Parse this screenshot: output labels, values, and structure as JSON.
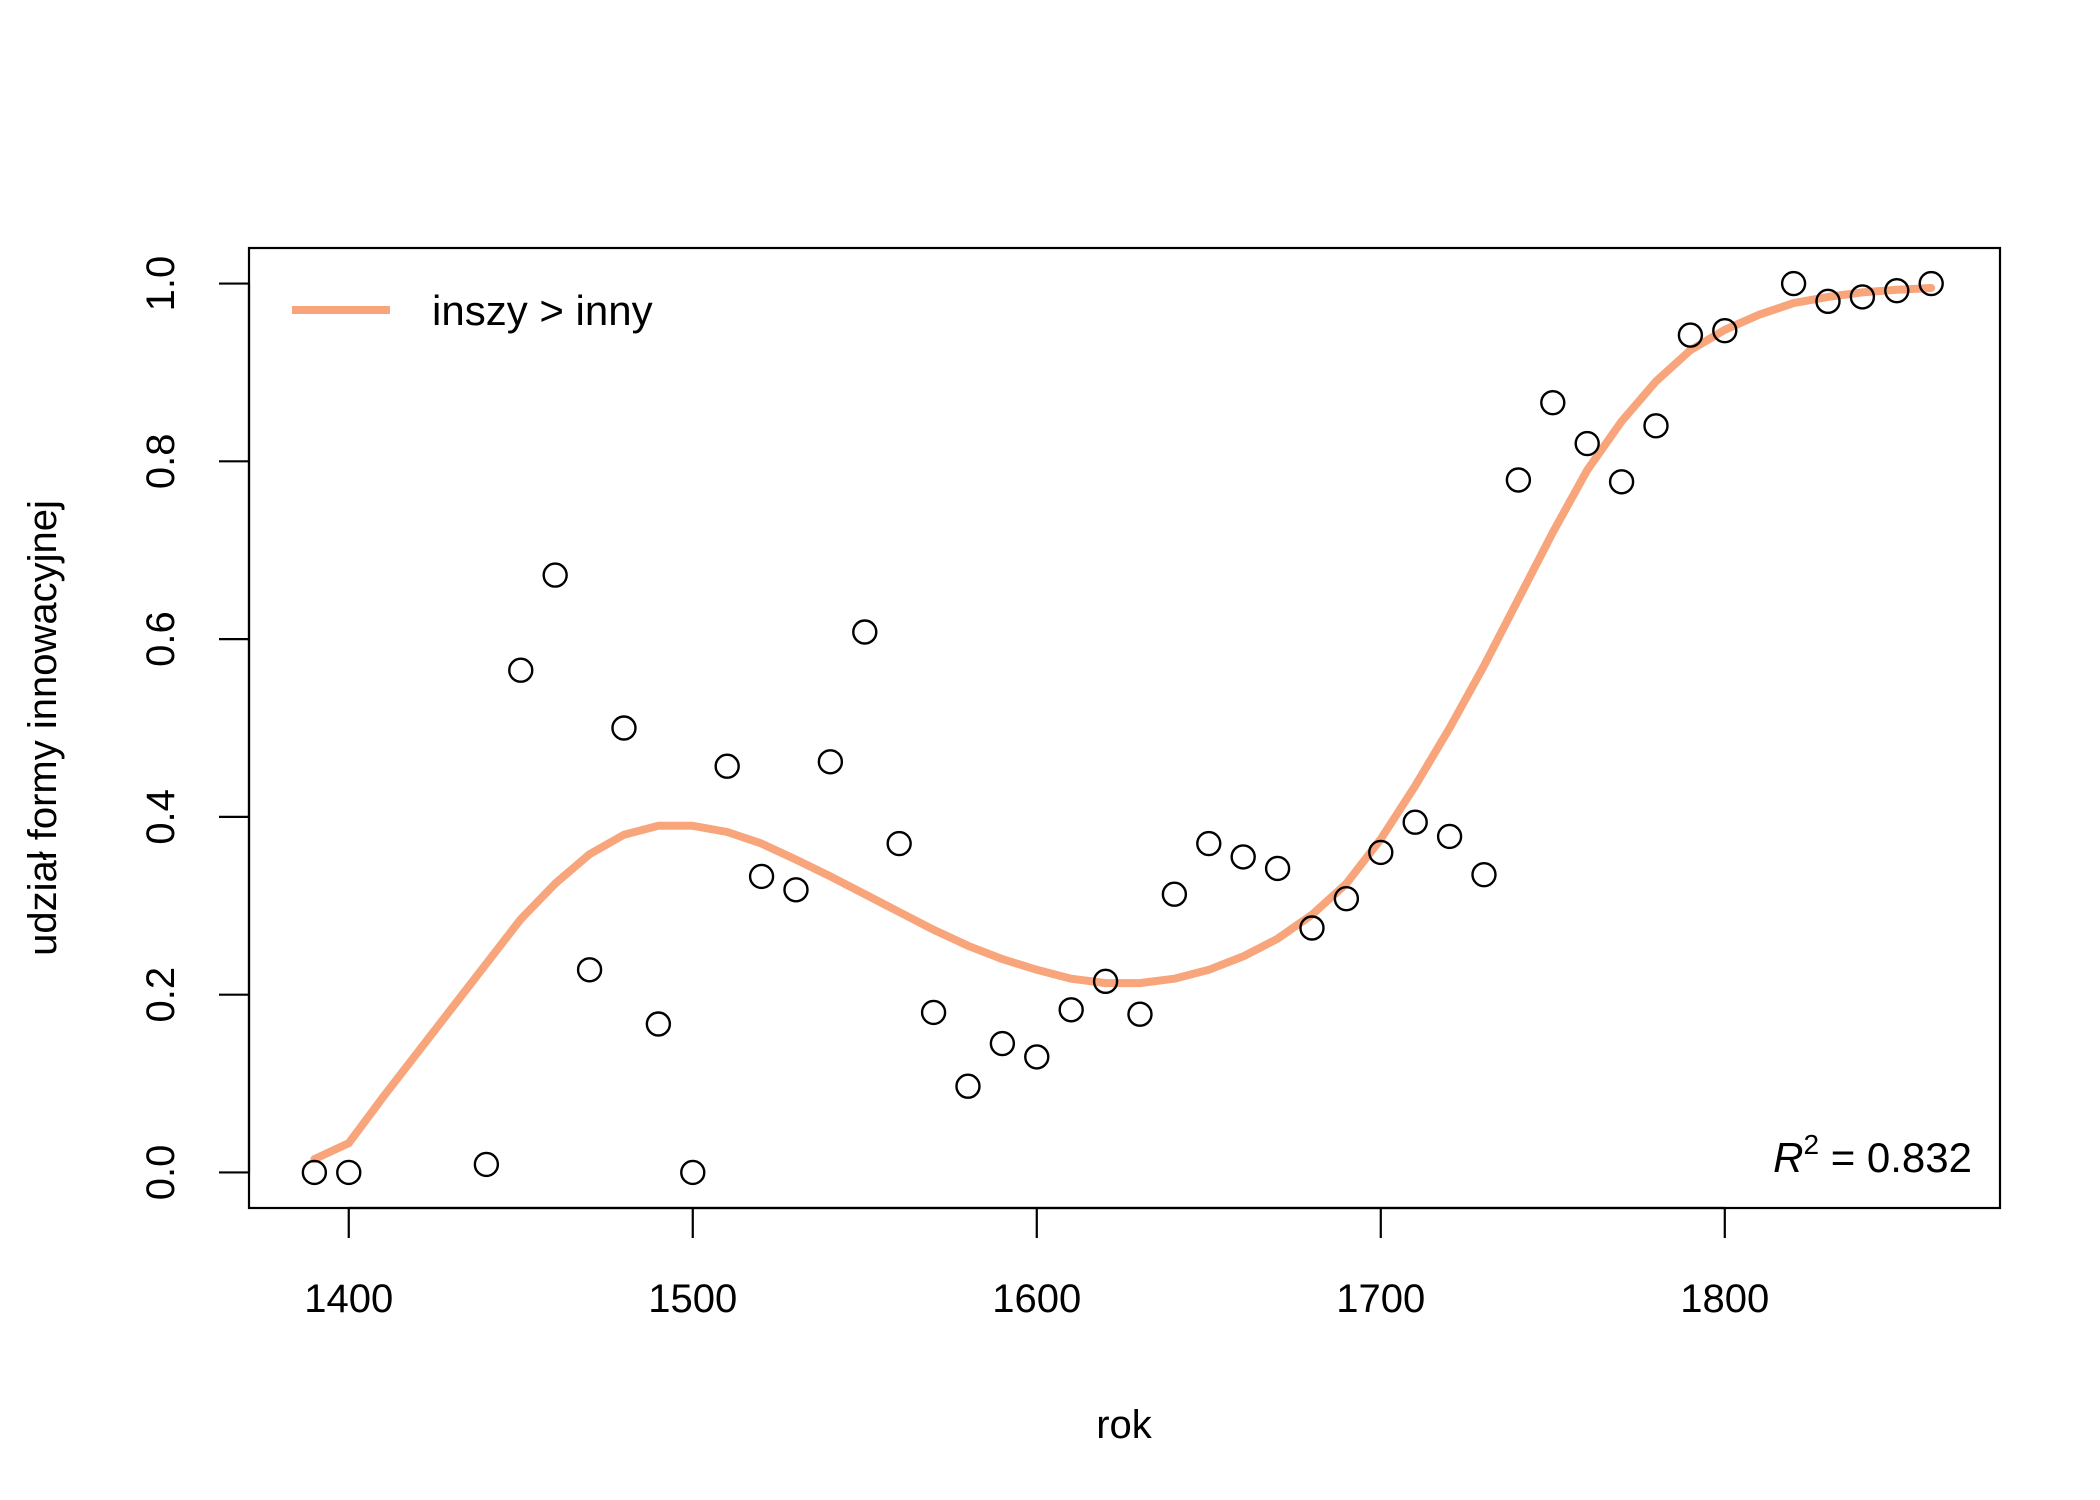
{
  "chart_data": {
    "type": "scatter",
    "xlabel": "rok",
    "ylabel": "udział formy innowacyjnej",
    "xlim": [
      1371,
      1880
    ],
    "ylim": [
      -0.04,
      1.04
    ],
    "x_ticks": [
      1400,
      1500,
      1600,
      1700,
      1800
    ],
    "x_tick_labels": [
      "1400",
      "1500",
      "1600",
      "1700",
      "1800"
    ],
    "y_ticks": [
      0.0,
      0.2,
      0.4,
      0.6,
      0.8,
      1.0
    ],
    "y_tick_labels": [
      "0.0",
      "0.2",
      "0.4",
      "0.6",
      "0.8",
      "1.0"
    ],
    "grid": false,
    "legend_position": "top-left",
    "legend": {
      "label": "inszy > inny",
      "color": "#F8A57C"
    },
    "annotation": {
      "prefix": "R",
      "superscript": "2",
      "suffix": " = 0.832",
      "position": "bottom-right"
    },
    "points": {
      "x": [
        1390,
        1400,
        1440,
        1450,
        1460,
        1470,
        1480,
        1490,
        1500,
        1510,
        1520,
        1530,
        1540,
        1550,
        1560,
        1570,
        1580,
        1590,
        1600,
        1610,
        1620,
        1630,
        1640,
        1650,
        1660,
        1670,
        1680,
        1690,
        1700,
        1710,
        1720,
        1730,
        1740,
        1750,
        1760,
        1770,
        1780,
        1790,
        1800,
        1820,
        1830,
        1840,
        1850,
        1860
      ],
      "y": [
        0.0,
        0.0,
        0.009,
        0.565,
        0.672,
        0.228,
        0.5,
        0.167,
        0.0,
        0.457,
        0.333,
        0.318,
        0.462,
        0.608,
        0.37,
        0.18,
        0.097,
        0.145,
        0.13,
        0.183,
        0.215,
        0.178,
        0.313,
        0.37,
        0.355,
        0.342,
        0.275,
        0.308,
        0.36,
        0.394,
        0.378,
        0.335,
        0.779,
        0.866,
        0.82,
        0.777,
        0.84,
        0.942,
        0.947,
        1.0,
        0.98,
        0.985,
        0.992,
        1.0
      ]
    },
    "series": [
      {
        "name": "inszy > inny",
        "color": "#F8A57C",
        "x": [
          1390,
          1400,
          1410,
          1420,
          1430,
          1440,
          1450,
          1460,
          1470,
          1480,
          1490,
          1500,
          1510,
          1520,
          1530,
          1540,
          1550,
          1560,
          1570,
          1580,
          1590,
          1600,
          1610,
          1620,
          1630,
          1640,
          1650,
          1660,
          1670,
          1680,
          1690,
          1700,
          1710,
          1720,
          1730,
          1740,
          1750,
          1760,
          1770,
          1780,
          1790,
          1800,
          1810,
          1820,
          1830,
          1840,
          1850,
          1860
        ],
        "y": [
          0.015,
          0.033,
          0.085,
          0.135,
          0.185,
          0.235,
          0.285,
          0.325,
          0.358,
          0.38,
          0.39,
          0.39,
          0.383,
          0.37,
          0.352,
          0.333,
          0.313,
          0.293,
          0.273,
          0.255,
          0.24,
          0.228,
          0.218,
          0.213,
          0.213,
          0.218,
          0.228,
          0.243,
          0.263,
          0.29,
          0.325,
          0.375,
          0.435,
          0.5,
          0.57,
          0.645,
          0.72,
          0.79,
          0.845,
          0.89,
          0.925,
          0.948,
          0.965,
          0.978,
          0.985,
          0.99,
          0.993,
          0.995
        ]
      }
    ]
  }
}
